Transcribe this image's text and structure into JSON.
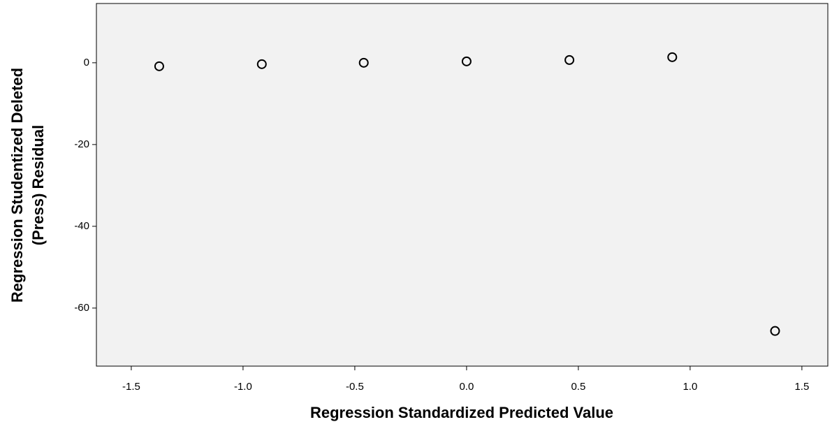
{
  "chart_data": {
    "type": "scatter",
    "xlabel": "Regression Standardized Predicted Value",
    "ylabel": [
      "Regression Studentized Deleted",
      "(Press) Residual"
    ],
    "x": [
      -1.375,
      -0.916,
      -0.46,
      0.0,
      0.46,
      0.92,
      1.38
    ],
    "values": [
      -0.85,
      -0.34,
      0.0,
      0.34,
      0.68,
      1.37,
      -65.6
    ],
    "color": "#000000",
    "xlim": [
      -1.656,
      1.616
    ],
    "ylim": [
      -74.2,
      14.5
    ],
    "xticks": [
      {
        "value": -1.5,
        "label": "-1.5"
      },
      {
        "value": -1.0,
        "label": "-1.0"
      },
      {
        "value": -0.5,
        "label": "-0.5"
      },
      {
        "value": 0.0,
        "label": "0.0"
      },
      {
        "value": 0.5,
        "label": "0.5"
      },
      {
        "value": 1.0,
        "label": "1.0"
      },
      {
        "value": 1.5,
        "label": "1.5"
      }
    ],
    "yticks": [
      0,
      -20,
      -40,
      -60
    ],
    "grid": false
  }
}
